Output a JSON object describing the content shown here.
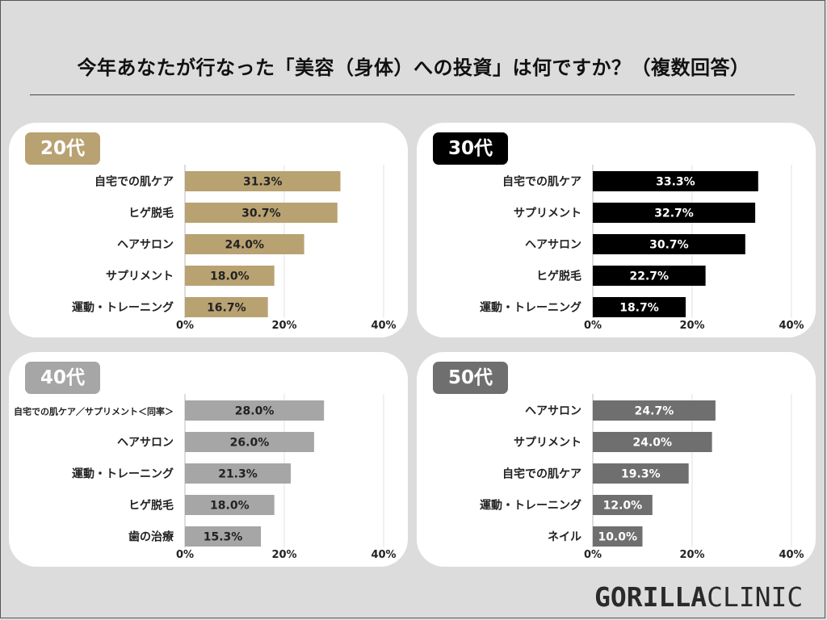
{
  "title": "今年あなたが行なった「美容（身体）への投資」は何ですか？（複数回答）",
  "logo": {
    "part1": "GORILLA",
    "part2": "CLINIC"
  },
  "chart_data": [
    {
      "type": "bar",
      "group": "20代",
      "color": "#b9a272",
      "categories": [
        "自宅での肌ケア",
        "ヒゲ脱毛",
        "ヘアサロン",
        "サプリメント",
        "運動・トレーニング"
      ],
      "values": [
        31.3,
        30.7,
        24.0,
        18.0,
        16.7
      ],
      "labels": [
        "31.3%",
        "30.7%",
        "24.0%",
        "18.0%",
        "16.7%"
      ],
      "xlim": [
        0,
        40
      ],
      "ticks": [
        "0%",
        "20%",
        "40%"
      ],
      "value_label_color": "#222222"
    },
    {
      "type": "bar",
      "group": "30代",
      "color": "#000000",
      "categories": [
        "自宅での肌ケア",
        "サプリメント",
        "ヘアサロン",
        "ヒゲ脱毛",
        "運動・トレーニング"
      ],
      "values": [
        33.3,
        32.7,
        30.7,
        22.7,
        18.7
      ],
      "labels": [
        "33.3%",
        "32.7%",
        "30.7%",
        "22.7%",
        "18.7%"
      ],
      "xlim": [
        0,
        40
      ],
      "ticks": [
        "0%",
        "20%",
        "40%"
      ],
      "value_label_color": "#ffffff"
    },
    {
      "type": "bar",
      "group": "40代",
      "color": "#a6a6a6",
      "categories": [
        "自宅での肌ケア／サプリメント＜同率＞",
        "ヘアサロン",
        "運動・トレーニング",
        "ヒゲ脱毛",
        "歯の治療"
      ],
      "values": [
        28.0,
        26.0,
        21.3,
        18.0,
        15.3
      ],
      "labels": [
        "28.0%",
        "26.0%",
        "21.3%",
        "18.0%",
        "15.3%"
      ],
      "xlim": [
        0,
        40
      ],
      "ticks": [
        "0%",
        "20%",
        "40%"
      ],
      "value_label_color": "#222222"
    },
    {
      "type": "bar",
      "group": "50代",
      "color": "#6f6f6f",
      "categories": [
        "ヘアサロン",
        "サプリメント",
        "自宅での肌ケア",
        "運動・トレーニング",
        "ネイル"
      ],
      "values": [
        24.7,
        24.0,
        19.3,
        12.0,
        10.0
      ],
      "labels": [
        "24.7%",
        "24.0%",
        "19.3%",
        "12.0%",
        "10.0%"
      ],
      "xlim": [
        0,
        40
      ],
      "ticks": [
        "0%",
        "20%",
        "40%"
      ],
      "value_label_color": "#ffffff"
    }
  ]
}
